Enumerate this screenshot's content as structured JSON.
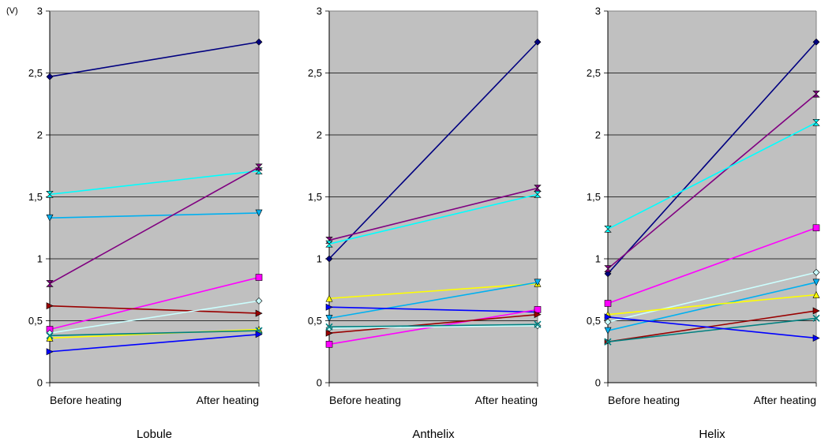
{
  "unit_label": "(V)",
  "chart_data": [
    {
      "type": "line",
      "title": "Lobule",
      "categories": [
        "Before heating",
        "After heating"
      ],
      "ylim": [
        0,
        3
      ],
      "yticks": [
        "0",
        "0,5",
        "1",
        "1,5",
        "2",
        "2,5",
        "3"
      ],
      "grid": true,
      "series": [
        {
          "color": "#000080",
          "marker": "diamond",
          "values": [
            2.47,
            2.75
          ]
        },
        {
          "color": "#00FFFF",
          "marker": "bowtie",
          "values": [
            1.52,
            1.71
          ]
        },
        {
          "color": "#00B0F0",
          "marker": "triangle-down",
          "values": [
            1.33,
            1.37
          ]
        },
        {
          "color": "#800080",
          "marker": "hourglass",
          "values": [
            0.8,
            1.74
          ]
        },
        {
          "color": "#FF00FF",
          "marker": "square",
          "values": [
            0.43,
            0.85
          ]
        },
        {
          "color": "#990000",
          "marker": "triangle-right",
          "values": [
            0.62,
            0.56
          ]
        },
        {
          "color": "#CCFFFF",
          "marker": "diamond-open",
          "values": [
            0.4,
            0.66
          ]
        },
        {
          "color": "#FFFF00",
          "marker": "triangle-up",
          "values": [
            0.36,
            0.43
          ]
        },
        {
          "color": "#008080",
          "marker": "x",
          "values": [
            0.38,
            0.42
          ]
        },
        {
          "color": "#0000FF",
          "marker": "triangle-right",
          "values": [
            0.25,
            0.39
          ]
        }
      ]
    },
    {
      "type": "line",
      "title": "Anthelix",
      "categories": [
        "Before heating",
        "After heating"
      ],
      "ylim": [
        0,
        3
      ],
      "yticks": [
        "0",
        "0,5",
        "1",
        "1,5",
        "2",
        "2,5",
        "3"
      ],
      "grid": true,
      "series": [
        {
          "color": "#000080",
          "marker": "diamond",
          "values": [
            1.0,
            2.75
          ]
        },
        {
          "color": "#800080",
          "marker": "hourglass",
          "values": [
            1.15,
            1.57
          ]
        },
        {
          "color": "#00FFFF",
          "marker": "bowtie",
          "values": [
            1.12,
            1.52
          ]
        },
        {
          "color": "#FFFF00",
          "marker": "triangle-up",
          "values": [
            0.68,
            0.8
          ]
        },
        {
          "color": "#00B0F0",
          "marker": "triangle-down",
          "values": [
            0.52,
            0.81
          ]
        },
        {
          "color": "#0000FF",
          "marker": "triangle-right",
          "values": [
            0.61,
            0.57
          ]
        },
        {
          "color": "#FF00FF",
          "marker": "square",
          "values": [
            0.31,
            0.59
          ]
        },
        {
          "color": "#990000",
          "marker": "triangle-right",
          "values": [
            0.4,
            0.55
          ]
        },
        {
          "color": "#CCFFFF",
          "marker": "diamond-open",
          "values": [
            0.44,
            0.46
          ]
        },
        {
          "color": "#008080",
          "marker": "x",
          "values": [
            0.45,
            0.47
          ]
        }
      ]
    },
    {
      "type": "line",
      "title": "Helix",
      "categories": [
        "Before heating",
        "After heating"
      ],
      "ylim": [
        0,
        3
      ],
      "yticks": [
        "0",
        "0,5",
        "1",
        "1,5",
        "2",
        "2,5",
        "3"
      ],
      "grid": true,
      "series": [
        {
          "color": "#000080",
          "marker": "diamond",
          "values": [
            0.88,
            2.75
          ]
        },
        {
          "color": "#800080",
          "marker": "hourglass",
          "values": [
            0.92,
            2.33
          ]
        },
        {
          "color": "#00FFFF",
          "marker": "bowtie",
          "values": [
            1.24,
            2.1
          ]
        },
        {
          "color": "#FF00FF",
          "marker": "square",
          "values": [
            0.64,
            1.25
          ]
        },
        {
          "color": "#CCFFFF",
          "marker": "diamond-open",
          "values": [
            0.49,
            0.89
          ]
        },
        {
          "color": "#00B0F0",
          "marker": "triangle-down",
          "values": [
            0.42,
            0.81
          ]
        },
        {
          "color": "#FFFF00",
          "marker": "triangle-up",
          "values": [
            0.55,
            0.71
          ]
        },
        {
          "color": "#990000",
          "marker": "triangle-right",
          "values": [
            0.33,
            0.58
          ]
        },
        {
          "color": "#008080",
          "marker": "x",
          "values": [
            0.33,
            0.52
          ]
        },
        {
          "color": "#0000FF",
          "marker": "triangle-right",
          "values": [
            0.53,
            0.36
          ]
        }
      ]
    }
  ]
}
